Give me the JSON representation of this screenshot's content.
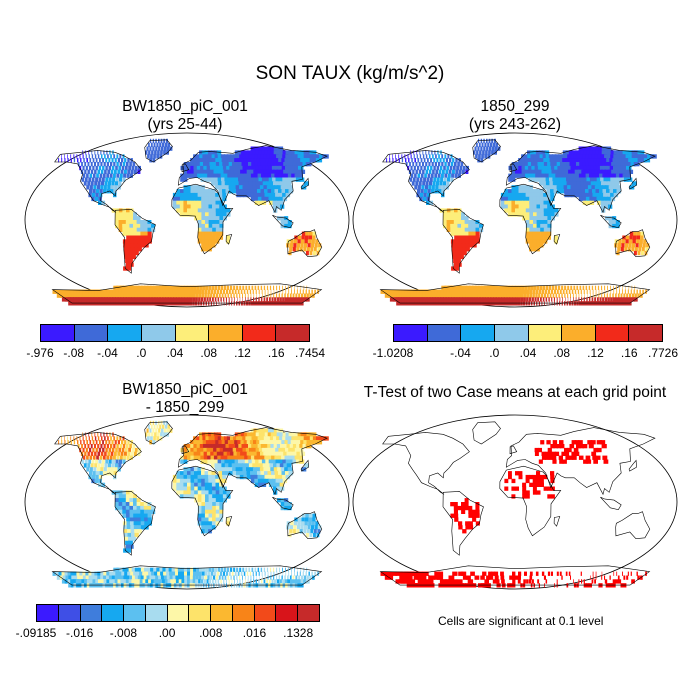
{
  "figure": {
    "title": "SON TAUX (kg/m/s^2)",
    "note": "Cells are significant at 0.1 level"
  },
  "panels": [
    {
      "id": "case1",
      "title_line1": "BW1850_piC_001",
      "title_line2": "(yrs 25-44)",
      "field": "mean",
      "colorbar": {
        "colors": [
          "#3b1aff",
          "#3f6ad8",
          "#16a8f0",
          "#8fc9ea",
          "#fdee7a",
          "#fbae2b",
          "#f22a1a",
          "#c62a2a"
        ],
        "labels": [
          "-.976",
          "-.08",
          "-.04",
          ".0",
          ".04",
          ".08",
          ".12",
          ".16",
          ".7454"
        ]
      }
    },
    {
      "id": "case2",
      "title_line1": "1850_299",
      "title_line2": "(yrs 243-262)",
      "field": "mean",
      "colorbar": {
        "colors": [
          "#3b1aff",
          "#3f6ad8",
          "#16a8f0",
          "#8fc9ea",
          "#fdee7a",
          "#fbae2b",
          "#f22a1a",
          "#c62a2a"
        ],
        "labels": [
          "-1.0208",
          "",
          "-.04",
          ".0",
          ".04",
          ".08",
          ".12",
          ".16",
          ".7726"
        ]
      }
    },
    {
      "id": "diff",
      "title_line1": "BW1850_piC_001",
      "title_line2": "- 1850_299",
      "field": "difference",
      "colorbar": {
        "colors": [
          "#3b1aff",
          "#3f4fe6",
          "#3f7ddc",
          "#16a8f0",
          "#5cc0f0",
          "#a8dcef",
          "#fdf7a8",
          "#fde36a",
          "#fbb830",
          "#f88418",
          "#f24a1a",
          "#d8141a",
          "#c62a2a"
        ],
        "labels": [
          "-.09185",
          "",
          "-.016",
          "",
          "-.008",
          "",
          ".00",
          "",
          ".008",
          "",
          ".016",
          "",
          ".1328"
        ]
      }
    },
    {
      "id": "ttest",
      "title_line1": "T-Test of two Case means at each grid point",
      "title_line2": "",
      "field": "significance"
    }
  ],
  "colors": {
    "land_outline": "#000000",
    "significant": "#ff0000",
    "background": "#ffffff"
  }
}
